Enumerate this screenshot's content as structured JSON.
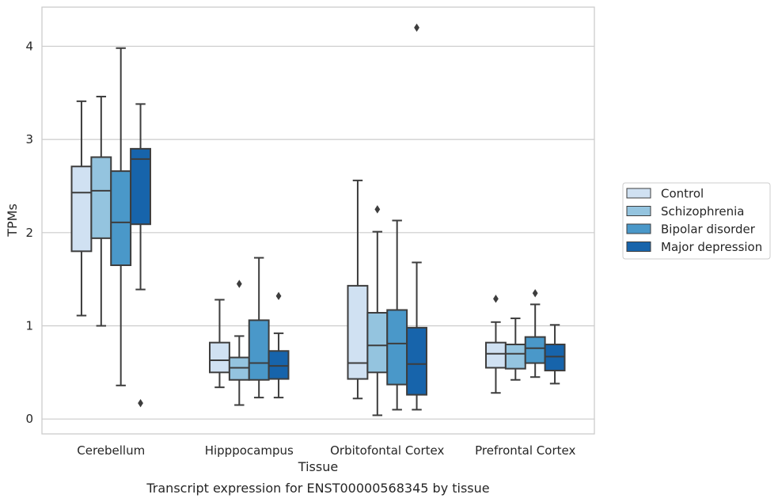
{
  "chart_data": {
    "type": "box",
    "caption": "Transcript expression for ENST00000568345 by tissue",
    "xlabel": "Tissue",
    "ylabel": "TPMs",
    "ylim": [
      -0.16,
      4.42
    ],
    "yticks": [
      0,
      1,
      2,
      3,
      4
    ],
    "grid": "horizontal",
    "legend_placement": "right",
    "categories": [
      "Cerebellum",
      "Hipppocampus",
      "Orbitofontal Cortex",
      "Prefrontal Cortex"
    ],
    "series": [
      {
        "name": "Control",
        "color": "#d0e1f2",
        "boxes": [
          {
            "whisker_low": 1.11,
            "q1": 1.8,
            "median": 2.43,
            "q3": 2.71,
            "whisker_high": 3.41,
            "outliers": []
          },
          {
            "whisker_low": 0.34,
            "q1": 0.5,
            "median": 0.63,
            "q3": 0.82,
            "whisker_high": 1.28,
            "outliers": []
          },
          {
            "whisker_low": 0.22,
            "q1": 0.43,
            "median": 0.6,
            "q3": 1.43,
            "whisker_high": 2.56,
            "outliers": []
          },
          {
            "whisker_low": 0.28,
            "q1": 0.55,
            "median": 0.7,
            "q3": 0.82,
            "whisker_high": 1.04,
            "outliers": [
              1.29
            ]
          }
        ]
      },
      {
        "name": "Schizophrenia",
        "color": "#94c4df",
        "boxes": [
          {
            "whisker_low": 1.0,
            "q1": 1.94,
            "median": 2.45,
            "q3": 2.81,
            "whisker_high": 3.46,
            "outliers": []
          },
          {
            "whisker_low": 0.15,
            "q1": 0.42,
            "median": 0.55,
            "q3": 0.66,
            "whisker_high": 0.89,
            "outliers": [
              1.45
            ]
          },
          {
            "whisker_low": 0.04,
            "q1": 0.5,
            "median": 0.79,
            "q3": 1.14,
            "whisker_high": 2.01,
            "outliers": [
              2.25
            ]
          },
          {
            "whisker_low": 0.42,
            "q1": 0.54,
            "median": 0.7,
            "q3": 0.8,
            "whisker_high": 1.08,
            "outliers": []
          }
        ]
      },
      {
        "name": "Bipolar disorder",
        "color": "#4a98c9",
        "boxes": [
          {
            "whisker_low": 0.36,
            "q1": 1.65,
            "median": 2.11,
            "q3": 2.66,
            "whisker_high": 3.98,
            "outliers": []
          },
          {
            "whisker_low": 0.23,
            "q1": 0.42,
            "median": 0.6,
            "q3": 1.06,
            "whisker_high": 1.73,
            "outliers": []
          },
          {
            "whisker_low": 0.1,
            "q1": 0.37,
            "median": 0.81,
            "q3": 1.17,
            "whisker_high": 2.13,
            "outliers": []
          },
          {
            "whisker_low": 0.45,
            "q1": 0.6,
            "median": 0.76,
            "q3": 0.88,
            "whisker_high": 1.23,
            "outliers": [
              1.35
            ]
          }
        ]
      },
      {
        "name": "Major depression",
        "color": "#1764ab",
        "boxes": [
          {
            "whisker_low": 1.39,
            "q1": 2.09,
            "median": 2.79,
            "q3": 2.9,
            "whisker_high": 3.38,
            "outliers": [
              0.17
            ]
          },
          {
            "whisker_low": 0.23,
            "q1": 0.43,
            "median": 0.57,
            "q3": 0.73,
            "whisker_high": 0.92,
            "outliers": [
              1.32
            ]
          },
          {
            "whisker_low": 0.1,
            "q1": 0.26,
            "median": 0.59,
            "q3": 0.98,
            "whisker_high": 1.68,
            "outliers": [
              4.2
            ]
          },
          {
            "whisker_low": 0.38,
            "q1": 0.52,
            "median": 0.67,
            "q3": 0.8,
            "whisker_high": 1.01,
            "outliers": []
          }
        ]
      }
    ]
  }
}
